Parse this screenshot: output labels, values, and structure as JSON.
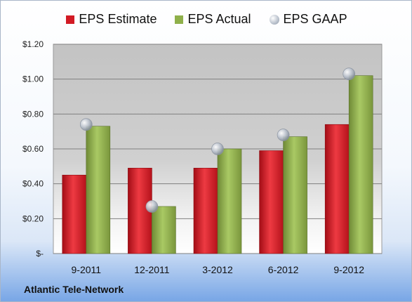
{
  "chart_data": {
    "type": "bar",
    "categories": [
      "9-2011",
      "12-2011",
      "3-2012",
      "6-2012",
      "9-2012"
    ],
    "series": [
      {
        "name": "EPS Estimate",
        "kind": "bar",
        "color": "#d21a24",
        "values": [
          0.45,
          0.49,
          0.49,
          0.59,
          0.74
        ]
      },
      {
        "name": "EPS Actual",
        "kind": "bar",
        "color": "#8fb04a",
        "values": [
          0.73,
          0.27,
          0.6,
          0.67,
          1.02
        ]
      },
      {
        "name": "EPS GAAP",
        "kind": "scatter",
        "color": "#b8c0cc",
        "values": [
          0.74,
          0.27,
          0.6,
          0.68,
          1.03
        ]
      }
    ],
    "yticks": [
      {
        "value": 0,
        "label": "$-"
      },
      {
        "value": 0.2,
        "label": "$0.20"
      },
      {
        "value": 0.4,
        "label": "$0.40"
      },
      {
        "value": 0.6,
        "label": "$0.60"
      },
      {
        "value": 0.8,
        "label": "$0.80"
      },
      {
        "value": 1.0,
        "label": "$1.00"
      },
      {
        "value": 1.2,
        "label": "$1.20"
      }
    ],
    "ylim": [
      0,
      1.2
    ],
    "grid": true,
    "legend_position": "top-center"
  },
  "footer": {
    "company": "Atlantic Tele-Network"
  }
}
